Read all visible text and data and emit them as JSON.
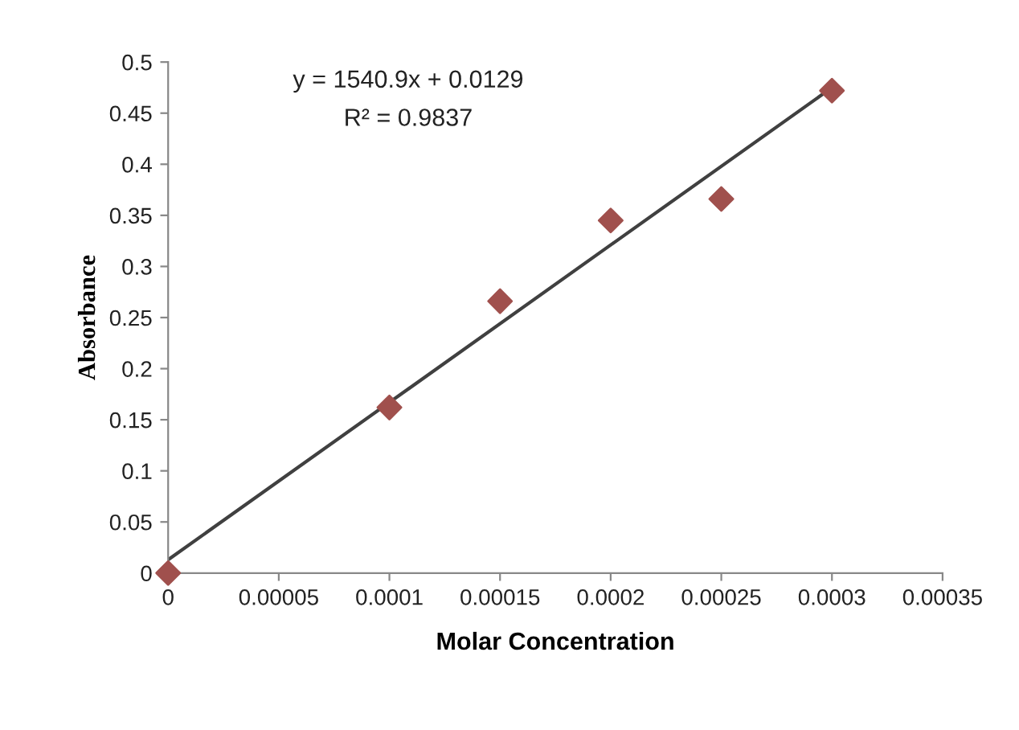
{
  "chart_data": {
    "type": "scatter",
    "xlabel": "Molar Concentration",
    "ylabel": "Absorbance",
    "x": [
      0,
      0.0001,
      0.00015,
      0.0002,
      0.00025,
      0.0003
    ],
    "series": [
      {
        "color": "#a0504d",
        "marker": "diamond",
        "values": [
          0,
          0.162,
          0.266,
          0.345,
          0.366,
          0.472
        ]
      },
      {
        "type": "line",
        "color": "#404040",
        "line_style": "solid",
        "x": [
          0,
          0.0003
        ],
        "values": [
          0.013,
          0.475
        ]
      }
    ],
    "annotations": [
      "y = 1540.9x + 0.0129",
      "R² = 0.9837"
    ],
    "xlim": [
      0,
      0.00035
    ],
    "xticks": [
      0,
      {
        "value": 5e-05,
        "label": "0.00005"
      },
      0.0001,
      0.00015,
      0.0002,
      0.00025,
      0.0003,
      0.00035
    ],
    "ylim": [
      0,
      0.5
    ],
    "yticks": [
      0,
      0.05,
      0.1,
      0.15,
      0.2,
      0.25,
      0.3,
      0.35,
      0.4,
      0.45,
      0.5
    ],
    "grid": false,
    "legend": false
  }
}
